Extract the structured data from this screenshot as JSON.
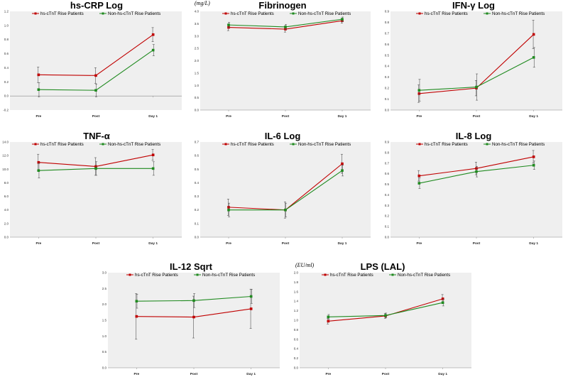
{
  "colors": {
    "hs": "#c00000",
    "non": "#1f8a1f",
    "plot_bg": "#efefef",
    "err": "#555555"
  },
  "chart_data": [
    {
      "type": "line",
      "title": "hs-CRP Log",
      "unit": "",
      "categories": [
        "Pre",
        "Post",
        "Day 1"
      ],
      "ylim": [
        -0.2,
        1.2
      ],
      "yticks": [
        "-0.2",
        "0.0",
        "0.2",
        "0.4",
        "0.6",
        "0.8",
        "1.0",
        "1.2"
      ],
      "legend": [
        "hs-cTnT Rise Patients",
        "Non-hs-cTnT Rise Patients"
      ],
      "series": [
        {
          "name": "hs-cTnT Rise Patients",
          "values": [
            0.3,
            0.29,
            0.87
          ],
          "err": [
            0.11,
            0.11,
            0.1
          ]
        },
        {
          "name": "Non-hs-cTnT Rise Patients",
          "values": [
            0.09,
            0.08,
            0.65
          ],
          "err": [
            0.1,
            0.09,
            0.08
          ]
        }
      ]
    },
    {
      "type": "line",
      "title": "Fibrinogen",
      "unit": "(mg/L)",
      "categories": [
        "Pre",
        "Post",
        "Day 1"
      ],
      "ylim": [
        0,
        4.0
      ],
      "yticks": [
        "0.0",
        "0.5",
        "1.0",
        "1.5",
        "2.0",
        "2.5",
        "3.0",
        "3.5",
        "4.0"
      ],
      "legend": [
        "hs-cTnT Rise Patients",
        "Non-hs-cTnT Rise Patients"
      ],
      "series": [
        {
          "name": "hs-cTnT Rise Patients",
          "values": [
            3.35,
            3.28,
            3.62
          ],
          "err": [
            0.13,
            0.12,
            0.1
          ]
        },
        {
          "name": "Non-hs-cTnT Rise Patients",
          "values": [
            3.45,
            3.37,
            3.68
          ],
          "err": [
            0.11,
            0.1,
            0.09
          ]
        }
      ]
    },
    {
      "type": "line",
      "title": "IFN-γ Log",
      "unit": "",
      "categories": [
        "Pre",
        "Post",
        "Day 1"
      ],
      "ylim": [
        0,
        0.9
      ],
      "yticks": [
        "0.0",
        "0.1",
        "0.2",
        "0.3",
        "0.4",
        "0.5",
        "0.6",
        "0.7",
        "0.8",
        "0.9"
      ],
      "legend": [
        "hs-cTnT Rise Patients",
        "Non-hs-cTnT Rise Patients"
      ],
      "series": [
        {
          "name": "hs-cTnT Rise Patients",
          "values": [
            0.15,
            0.2,
            0.69
          ],
          "err": [
            0.08,
            0.07,
            0.13
          ]
        },
        {
          "name": "Non-hs-cTnT Rise Patients",
          "values": [
            0.18,
            0.21,
            0.48
          ],
          "err": [
            0.1,
            0.12,
            0.09
          ]
        }
      ]
    },
    {
      "type": "line",
      "title": "TNF-α",
      "unit": "",
      "categories": [
        "Pre",
        "Post",
        "Day 1"
      ],
      "ylim": [
        0,
        14
      ],
      "yticks": [
        "0.0",
        "2.0",
        "4.0",
        "6.0",
        "8.0",
        "10.0",
        "12.0",
        "14.0"
      ],
      "legend": [
        "hs-cTnT Rise Patients",
        "Non-hs-cTnT Rise Patients"
      ],
      "series": [
        {
          "name": "hs-cTnT Rise Patients",
          "values": [
            11.0,
            10.4,
            12.1
          ],
          "err": [
            1.2,
            1.3,
            0.8
          ]
        },
        {
          "name": "Non-hs-cTnT Rise Patients",
          "values": [
            9.8,
            10.1,
            10.1
          ],
          "err": [
            1.1,
            1.0,
            1.0
          ]
        }
      ]
    },
    {
      "type": "line",
      "title": "IL-6 Log",
      "unit": "",
      "categories": [
        "Pre",
        "Post",
        "Day 1"
      ],
      "ylim": [
        0,
        0.7
      ],
      "yticks": [
        "0.0",
        "0.1",
        "0.2",
        "0.3",
        "0.4",
        "0.5",
        "0.6",
        "0.7"
      ],
      "legend": [
        "hs-cTnT Rise Patients",
        "Non-hs-cTnT Rise Patients"
      ],
      "series": [
        {
          "name": "hs-cTnT Rise Patients",
          "values": [
            0.22,
            0.2,
            0.54
          ],
          "err": [
            0.06,
            0.06,
            0.07
          ]
        },
        {
          "name": "Non-hs-cTnT Rise Patients",
          "values": [
            0.2,
            0.2,
            0.49
          ],
          "err": [
            0.05,
            0.05,
            0.04
          ]
        }
      ]
    },
    {
      "type": "line",
      "title": "IL-8 Log",
      "unit": "",
      "categories": [
        "Pre",
        "Post",
        "Day 1"
      ],
      "ylim": [
        0,
        0.9
      ],
      "yticks": [
        "0.0",
        "0.1",
        "0.2",
        "0.3",
        "0.4",
        "0.5",
        "0.6",
        "0.7",
        "0.8",
        "0.9"
      ],
      "legend": [
        "hs-cTnT Rise Patients",
        "Non-hs-cTnT Rise Patients"
      ],
      "series": [
        {
          "name": "hs-cTnT Rise Patients",
          "values": [
            0.58,
            0.65,
            0.76
          ],
          "err": [
            0.05,
            0.06,
            0.06
          ]
        },
        {
          "name": "Non-hs-cTnT Rise Patients",
          "values": [
            0.51,
            0.62,
            0.68
          ],
          "err": [
            0.05,
            0.05,
            0.04
          ]
        }
      ]
    },
    {
      "type": "line",
      "title": "IL-12 Sqrt",
      "unit": "",
      "categories": [
        "Pre",
        "Post",
        "Day 1"
      ],
      "ylim": [
        0,
        3.0
      ],
      "yticks": [
        "0.0",
        "0.5",
        "1.0",
        "1.5",
        "2.0",
        "2.5",
        "3.0"
      ],
      "legend": [
        "hs-cTnT Rise Patients",
        "Non-hs-cTnT Rise Patients"
      ],
      "series": [
        {
          "name": "hs-cTnT Rise Patients",
          "values": [
            1.62,
            1.6,
            1.86
          ],
          "err": [
            0.72,
            0.66,
            0.62
          ]
        },
        {
          "name": "Non-hs-cTnT Rise Patients",
          "values": [
            2.1,
            2.12,
            2.25
          ],
          "err": [
            0.22,
            0.22,
            0.22
          ]
        }
      ]
    },
    {
      "type": "line",
      "title": "LPS (LAL)",
      "unit": "(EU/ml)",
      "categories": [
        "Pre",
        "Post",
        "Day 1"
      ],
      "ylim": [
        0,
        2.0
      ],
      "yticks": [
        "0.0",
        "0.2",
        "0.4",
        "0.6",
        "0.8",
        "1.0",
        "1.2",
        "1.4",
        "1.6",
        "1.8",
        "2.0"
      ],
      "legend": [
        "hs-cTnT Rise Patients",
        "Non-hs-cTnT Rise Patients"
      ],
      "series": [
        {
          "name": "hs-cTnT Rise Patients",
          "values": [
            0.98,
            1.09,
            1.45
          ],
          "err": [
            0.06,
            0.05,
            0.09
          ]
        },
        {
          "name": "Non-hs-cTnT Rise Patients",
          "values": [
            1.07,
            1.1,
            1.37
          ],
          "err": [
            0.05,
            0.05,
            0.07
          ]
        }
      ]
    }
  ]
}
